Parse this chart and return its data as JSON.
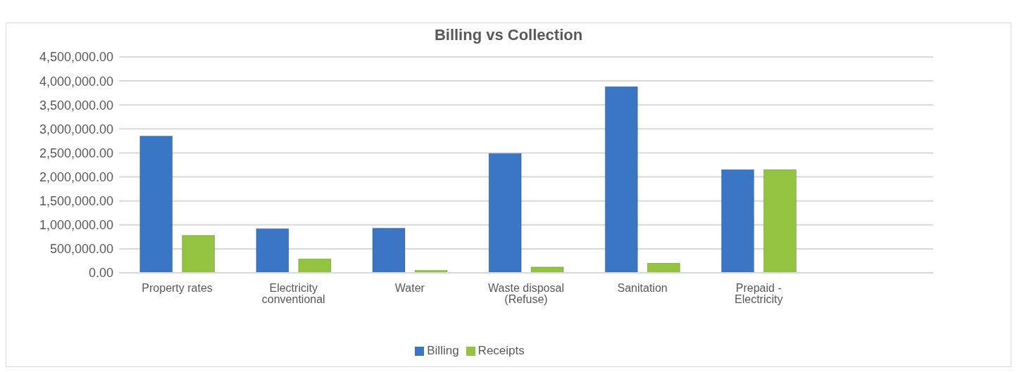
{
  "chart_data": {
    "type": "bar",
    "title": "Billing vs Collection",
    "categories": [
      "Property rates",
      "Electricity conventional",
      "Water",
      "Waste disposal (Refuse)",
      "Sanitation",
      "Prepaid - Electricity",
      null
    ],
    "series": [
      {
        "name": "Billing",
        "color": "#3a76c4",
        "values": [
          2850000,
          920000,
          930000,
          2490000,
          3880000,
          2150000,
          null
        ]
      },
      {
        "name": "Receipts",
        "color": "#92c441",
        "values": [
          780000,
          290000,
          50000,
          120000,
          200000,
          2150000,
          null
        ]
      }
    ],
    "ylim": [
      0,
      4500000
    ],
    "yticks": [
      {
        "value": 0,
        "label": "0.00"
      },
      {
        "value": 500000,
        "label": "500,000.00"
      },
      {
        "value": 1000000,
        "label": "1,000,000.00"
      },
      {
        "value": 1500000,
        "label": "1,500,000.00"
      },
      {
        "value": 2000000,
        "label": "2,000,000.00"
      },
      {
        "value": 2500000,
        "label": "2,500,000.00"
      },
      {
        "value": 3000000,
        "label": "3,000,000.00"
      },
      {
        "value": 3500000,
        "label": "3,500,000.00"
      },
      {
        "value": 4000000,
        "label": "4,000,000.00"
      },
      {
        "value": 4500000,
        "label": "4,500,000.00"
      }
    ],
    "grid": "y",
    "legend": "bottom"
  }
}
